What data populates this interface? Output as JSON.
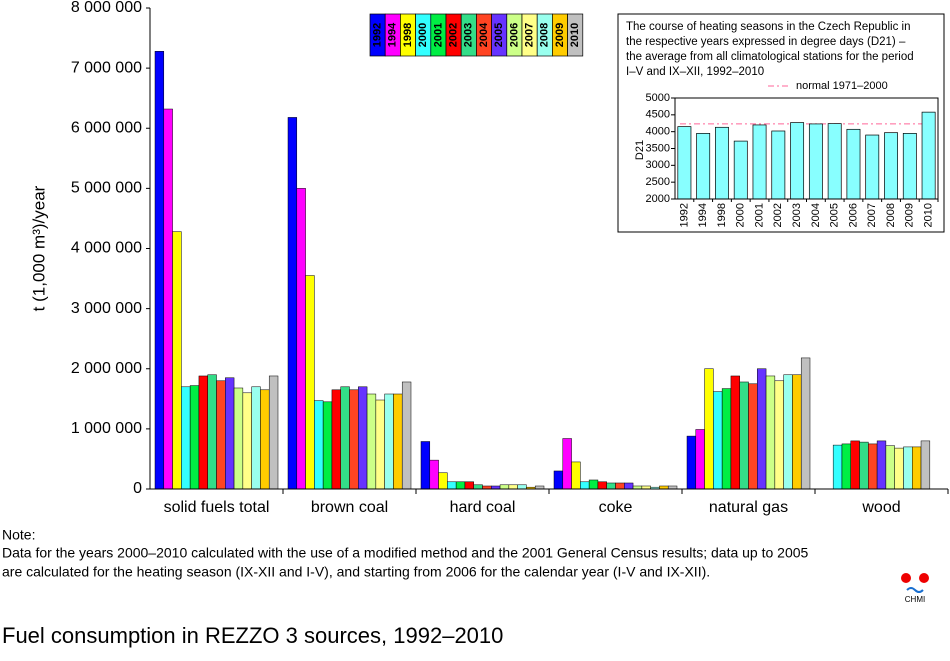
{
  "chart_data": [
    {
      "type": "bar",
      "title": "Fuel consumption in REZZO 3 sources, 1992–2010",
      "y_label": "t (1,000 m³)/year",
      "categories": [
        "solid fuels total",
        "brown coal",
        "hard coal",
        "coke",
        "natural gas",
        "wood"
      ],
      "ylim": [
        0,
        8000000
      ],
      "yticks": [
        {
          "value": 0,
          "label": "0"
        },
        {
          "value": 1000000,
          "label": "1 000 000"
        },
        {
          "value": 2000000,
          "label": "2 000 000"
        },
        {
          "value": 3000000,
          "label": "3 000 000"
        },
        {
          "value": 4000000,
          "label": "4 000 000"
        },
        {
          "value": 5000000,
          "label": "5 000 000"
        },
        {
          "value": 6000000,
          "label": "6 000 000"
        },
        {
          "value": 7000000,
          "label": "7 000 000"
        },
        {
          "value": 8000000,
          "label": "8 000 000"
        }
      ],
      "grid": false,
      "series": [
        {
          "name": "1992",
          "color": "#0000ff",
          "values": [
            7280000,
            6180000,
            790000,
            300000,
            880000,
            null
          ]
        },
        {
          "name": "1994",
          "color": "#ff00ff",
          "values": [
            6320000,
            5000000,
            480000,
            840000,
            990000,
            null
          ]
        },
        {
          "name": "1998",
          "color": "#ffff00",
          "values": [
            4280000,
            3550000,
            270000,
            450000,
            2000000,
            null
          ]
        },
        {
          "name": "2000",
          "color": "#33ffff",
          "values": [
            1700000,
            1470000,
            120000,
            120000,
            1620000,
            730000
          ]
        },
        {
          "name": "2001",
          "color": "#00ee44",
          "values": [
            1720000,
            1450000,
            120000,
            150000,
            1670000,
            750000
          ]
        },
        {
          "name": "2002",
          "color": "#ff0000",
          "values": [
            1880000,
            1650000,
            120000,
            120000,
            1880000,
            800000
          ]
        },
        {
          "name": "2003",
          "color": "#33dd88",
          "values": [
            1900000,
            1700000,
            70000,
            100000,
            1780000,
            780000
          ]
        },
        {
          "name": "2004",
          "color": "#ff4422",
          "values": [
            1800000,
            1650000,
            50000,
            100000,
            1750000,
            750000
          ]
        },
        {
          "name": "2005",
          "color": "#6633ff",
          "values": [
            1850000,
            1700000,
            50000,
            100000,
            2000000,
            800000
          ]
        },
        {
          "name": "2006",
          "color": "#ccff88",
          "values": [
            1680000,
            1580000,
            70000,
            50000,
            1880000,
            720000
          ]
        },
        {
          "name": "2007",
          "color": "#ffff88",
          "values": [
            1600000,
            1480000,
            70000,
            50000,
            1800000,
            680000
          ]
        },
        {
          "name": "2008",
          "color": "#99ffee",
          "values": [
            1700000,
            1580000,
            70000,
            30000,
            1900000,
            700000
          ]
        },
        {
          "name": "2009",
          "color": "#ffcc00",
          "values": [
            1650000,
            1580000,
            30000,
            50000,
            1900000,
            700000
          ]
        },
        {
          "name": "2010",
          "color": "#c0c0c0",
          "values": [
            1880000,
            1780000,
            50000,
            50000,
            2180000,
            800000
          ]
        }
      ]
    },
    {
      "type": "bar",
      "title": [
        "The course of heating seasons in the Czech Republic in",
        "the respective years expressed in degree days (D21) –",
        "the average from all climatological stations for the period",
        "I–V and IX–XII, 1992–2010"
      ],
      "y_label": "D21",
      "categories": [
        "1992",
        "1994",
        "1998",
        "2000",
        "2001",
        "2002",
        "2003",
        "2004",
        "2005",
        "2006",
        "2007",
        "2008",
        "2009",
        "2010"
      ],
      "values": [
        4150,
        3950,
        4130,
        3720,
        4200,
        4020,
        4270,
        4230,
        4240,
        4070,
        3900,
        3970,
        3950,
        4580
      ],
      "color": "#88ffff",
      "ylim": [
        2000,
        5000
      ],
      "yticks": [
        2000,
        2500,
        3000,
        3500,
        4000,
        4500,
        5000
      ],
      "grid": false,
      "reference": {
        "name": "normal 1971–2000",
        "value": 4230,
        "color": "#ff6699"
      }
    }
  ],
  "note": [
    "Note:",
    "Data for the years 2000–2010 calculated with the use of a modified method and the 2001 General Census results; data up to 2005",
    "are calculated for the heating season (IX-XII and I-V), and starting from 2006 for the calendar year (I-V and IX-XII)."
  ],
  "logo_text": "CHMI"
}
